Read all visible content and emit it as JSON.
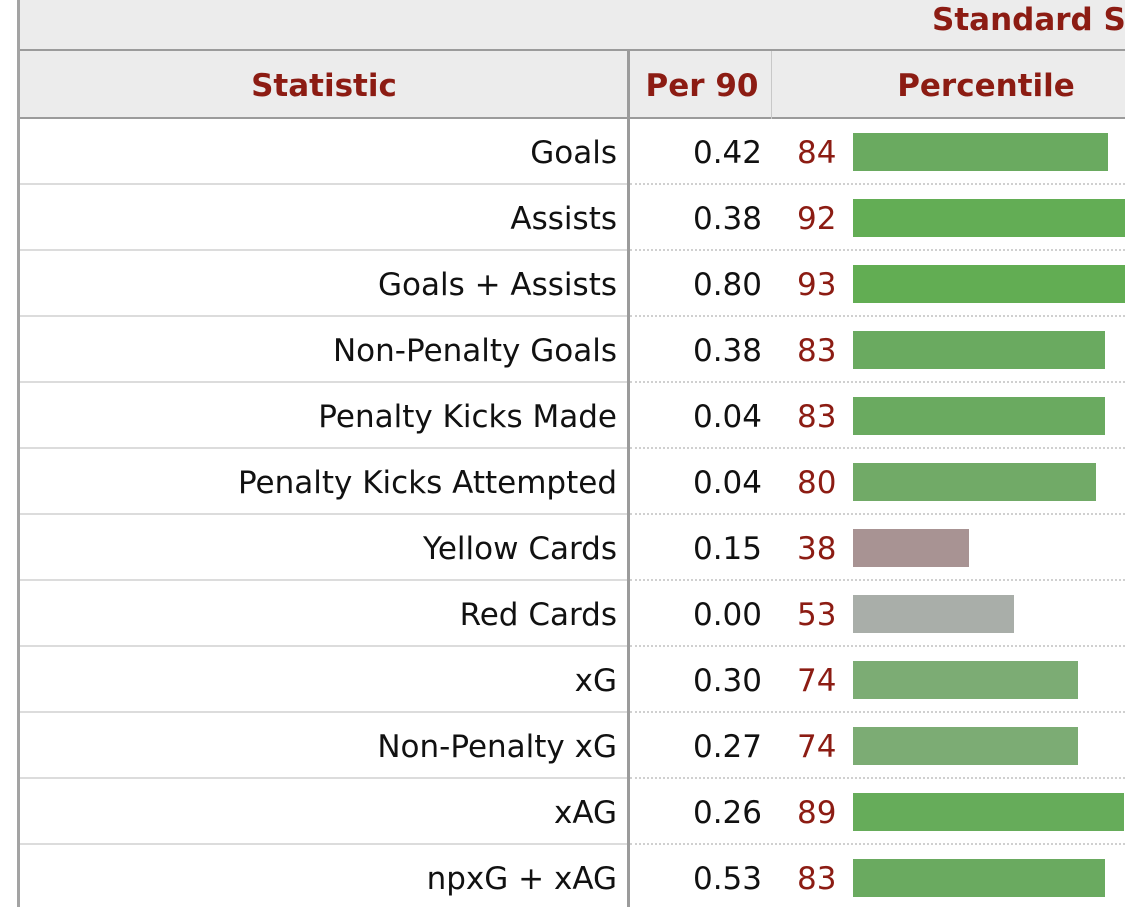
{
  "table": {
    "group_header": "Standard Stats",
    "headers": {
      "statistic": "Statistic",
      "per90": "Per 90",
      "percentile": "Percentile"
    }
  },
  "chart_data": {
    "type": "table",
    "title": "Standard Stats",
    "columns": [
      "Statistic",
      "Per 90",
      "Percentile"
    ],
    "percentile_range": [
      0,
      100
    ],
    "rows": [
      {
        "statistic": "Goals",
        "per90": "0.42",
        "percentile": 84,
        "bar_color": "#6aaa60"
      },
      {
        "statistic": "Assists",
        "per90": "0.38",
        "percentile": 92,
        "bar_color": "#63ad55"
      },
      {
        "statistic": "Goals + Assists",
        "per90": "0.80",
        "percentile": 93,
        "bar_color": "#62ad53"
      },
      {
        "statistic": "Non-Penalty Goals",
        "per90": "0.38",
        "percentile": 83,
        "bar_color": "#6aaa60"
      },
      {
        "statistic": "Penalty Kicks Made",
        "per90": "0.04",
        "percentile": 83,
        "bar_color": "#6aaa60"
      },
      {
        "statistic": "Penalty Kicks Attempted",
        "per90": "0.04",
        "percentile": 80,
        "bar_color": "#71aa67"
      },
      {
        "statistic": "Yellow Cards",
        "per90": "0.15",
        "percentile": 38,
        "bar_color": "#a89393"
      },
      {
        "statistic": "Red Cards",
        "per90": "0.00",
        "percentile": 53,
        "bar_color": "#a9aea9"
      },
      {
        "statistic": "xG",
        "per90": "0.30",
        "percentile": 74,
        "bar_color": "#7cac74"
      },
      {
        "statistic": "Non-Penalty xG",
        "per90": "0.27",
        "percentile": 74,
        "bar_color": "#7cac74"
      },
      {
        "statistic": "xAG",
        "per90": "0.26",
        "percentile": 89,
        "bar_color": "#66ac5a"
      },
      {
        "statistic": "npxG + xAG",
        "per90": "0.53",
        "percentile": 83,
        "bar_color": "#6aaa60"
      }
    ]
  }
}
